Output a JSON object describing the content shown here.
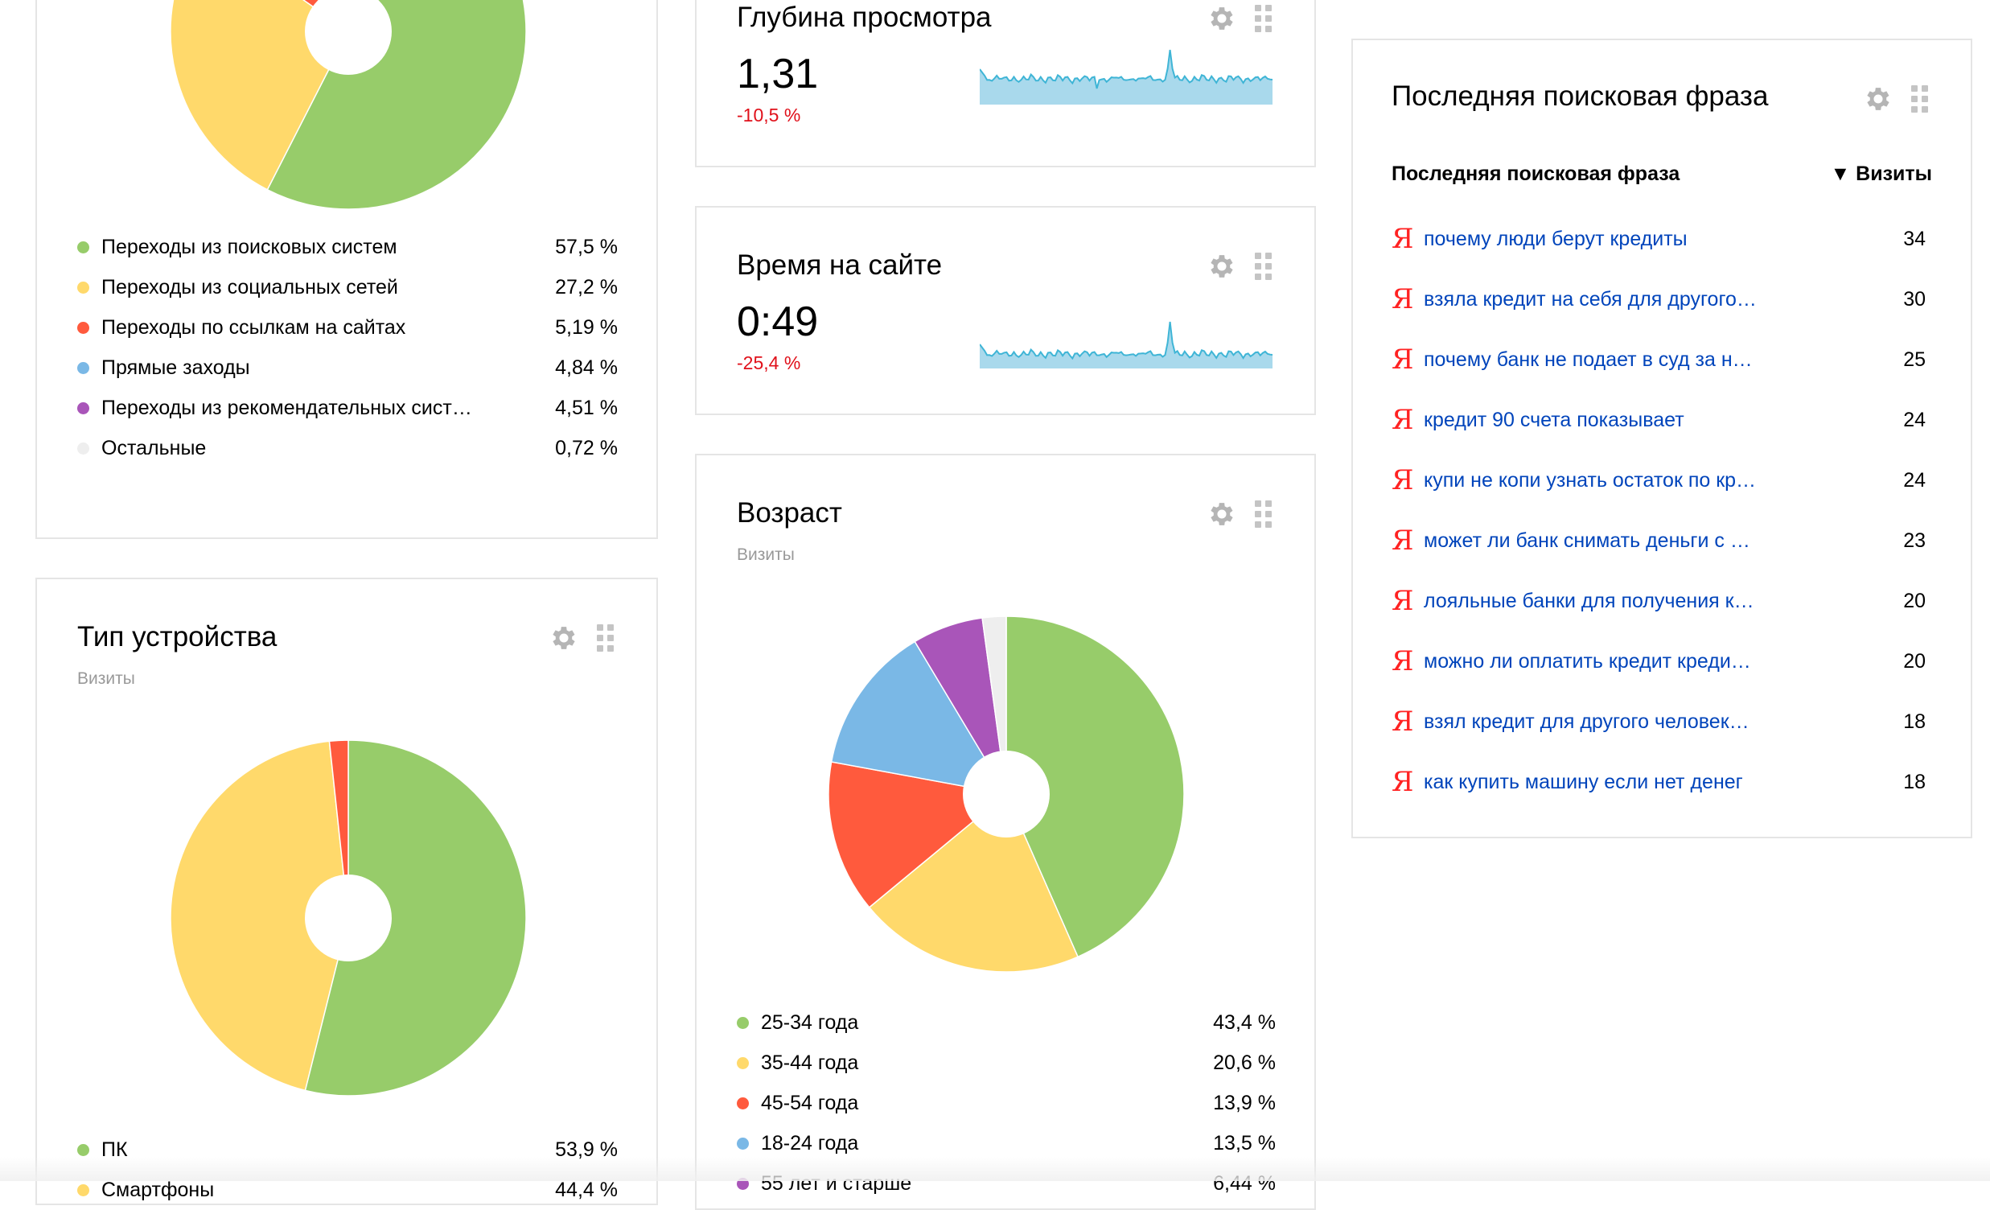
{
  "colors": {
    "green": "#97cc6a",
    "yellow": "#ffd96b",
    "red": "#ff5a3d",
    "blue": "#7ab8e6",
    "purple": "#a955b9",
    "light": "#eeeeee",
    "link": "#0044bb",
    "negative": "#e0101a",
    "sparkline": "#3fb5d6"
  },
  "sources": {
    "items": [
      {
        "label": "Переходы из поисковых систем",
        "value": "57,5 %",
        "pct": 57.5,
        "color": "#97cc6a"
      },
      {
        "label": "Переходы из социальных сетей",
        "value": "27,2 %",
        "pct": 27.2,
        "color": "#ffd96b"
      },
      {
        "label": "Переходы по ссылкам на сайтах",
        "value": "5,19 %",
        "pct": 5.19,
        "color": "#ff5a3d"
      },
      {
        "label": "Прямые заходы",
        "value": "4,84 %",
        "pct": 4.84,
        "color": "#7ab8e6"
      },
      {
        "label": "Переходы из рекомендательных сист…",
        "value": "4,51 %",
        "pct": 4.51,
        "color": "#a955b9"
      },
      {
        "label": "Остальные",
        "value": "0,72 %",
        "pct": 0.72,
        "color": "#eeeeee"
      }
    ]
  },
  "depth": {
    "title": "Глубина просмотра",
    "value": "1,31",
    "delta": "-10,5 %"
  },
  "time_on_site": {
    "title": "Время на сайте",
    "value": "0:49",
    "delta": "-25,4 %"
  },
  "age": {
    "title": "Возраст",
    "subtitle": "Визиты",
    "items": [
      {
        "label": "25-34 года",
        "value": "43,4 %",
        "pct": 43.4,
        "color": "#97cc6a"
      },
      {
        "label": "35-44 года",
        "value": "20,6 %",
        "pct": 20.6,
        "color": "#ffd96b"
      },
      {
        "label": "45-54 года",
        "value": "13,9 %",
        "pct": 13.9,
        "color": "#ff5a3d"
      },
      {
        "label": "18-24 года",
        "value": "13,5 %",
        "pct": 13.5,
        "color": "#7ab8e6"
      },
      {
        "label": "55 лет и старше",
        "value": "6,44 %",
        "pct": 6.44,
        "color": "#a955b9"
      },
      {
        "label": "",
        "value": "",
        "pct": 2.16,
        "color": "#eeeeee"
      }
    ]
  },
  "device": {
    "title": "Тип устройства",
    "subtitle": "Визиты",
    "items": [
      {
        "label": "ПК",
        "value": "53,9 %",
        "pct": 53.9,
        "color": "#97cc6a"
      },
      {
        "label": "Смартфоны",
        "value": "44,4 %",
        "pct": 44.4,
        "color": "#ffd96b"
      },
      {
        "label": "",
        "value": "",
        "pct": 1.7,
        "color": "#ff5a3d"
      }
    ]
  },
  "search": {
    "title": "Последняя поисковая фраза",
    "col_phrase": "Последняя поисковая фраза",
    "col_visits": "▼ Визиты",
    "rows": [
      {
        "phrase": "почему люди берут кредиты",
        "visits": "34"
      },
      {
        "phrase": "взяла кредит на себя для другого…",
        "visits": "30"
      },
      {
        "phrase": "почему банк не подает в суд за н…",
        "visits": "25"
      },
      {
        "phrase": "кредит 90 счета показывает",
        "visits": "24"
      },
      {
        "phrase": "купи не копи узнать остаток по кр…",
        "visits": "24"
      },
      {
        "phrase": "может ли банк снимать деньги с …",
        "visits": "23"
      },
      {
        "phrase": "лояльные банки для получения к…",
        "visits": "20"
      },
      {
        "phrase": "можно ли оплатить кредит креди…",
        "visits": "20"
      },
      {
        "phrase": "взял кредит для другого человек…",
        "visits": "18"
      },
      {
        "phrase": "как купить машину если нет денег",
        "visits": "18"
      }
    ]
  }
}
